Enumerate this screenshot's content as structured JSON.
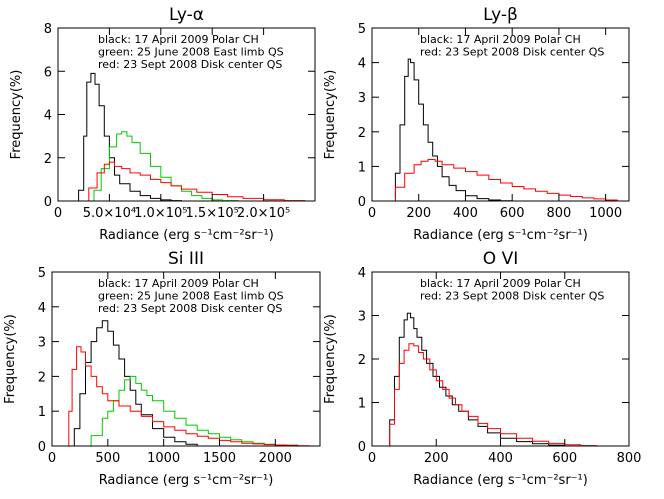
{
  "chart_data": [
    {
      "type": "line",
      "step": true,
      "title": "Ly-α",
      "xlabel": "Radiance (erg s⁻¹cm⁻²sr⁻¹)",
      "ylabel": "Frequency(%)",
      "xlim": [
        0,
        250000
      ],
      "ylim": [
        0,
        8
      ],
      "xticks": [
        0,
        50000,
        100000,
        150000,
        200000
      ],
      "xtick_labels": [
        "0",
        "5.0×10⁴",
        "1.0×10⁵",
        "1.5×10⁵",
        "2.0×10⁵"
      ],
      "yticks": [
        0,
        2,
        4,
        6,
        8
      ],
      "ytick_labels": [
        "0",
        "2",
        "4",
        "6",
        "8"
      ],
      "legend": [
        {
          "text": "black: 17 April 2009 Polar CH",
          "color": "#000000"
        },
        {
          "text": "green: 25 June 2008 East limb QS",
          "color": "#000000"
        },
        {
          "text": "red: 23 Sept 2008 Disk center QS",
          "color": "#000000"
        }
      ],
      "series": [
        {
          "color": "#000000",
          "x": [
            15000,
            20000,
            25000,
            28000,
            32000,
            36000,
            40000,
            45000,
            50000,
            55000,
            60000,
            70000,
            80000,
            90000,
            100000,
            110000,
            120000
          ],
          "y": [
            0,
            0.5,
            3.0,
            5.5,
            5.9,
            5.4,
            4.4,
            3.0,
            2.0,
            1.2,
            0.8,
            0.45,
            0.25,
            0.12,
            0.05,
            0.02,
            0
          ]
        },
        {
          "color": "#00cc00",
          "x": [
            28000,
            35000,
            42000,
            50000,
            57000,
            62000,
            67000,
            72000,
            80000,
            90000,
            100000,
            110000,
            120000,
            130000,
            140000,
            150000,
            160000,
            175000
          ],
          "y": [
            0,
            0.5,
            1.5,
            2.5,
            3.1,
            3.2,
            3.0,
            2.7,
            2.2,
            1.6,
            1.1,
            0.7,
            0.45,
            0.25,
            0.12,
            0.05,
            0.02,
            0
          ]
        },
        {
          "color": "#ff0000",
          "x": [
            20000,
            30000,
            38000,
            45000,
            50000,
            55000,
            62000,
            70000,
            80000,
            90000,
            100000,
            110000,
            120000,
            135000,
            150000,
            165000,
            180000,
            200000,
            220000,
            240000
          ],
          "y": [
            0,
            0.6,
            1.3,
            1.7,
            1.8,
            1.6,
            1.5,
            1.3,
            1.2,
            1.0,
            0.85,
            0.7,
            0.55,
            0.4,
            0.3,
            0.2,
            0.12,
            0.06,
            0.02,
            0
          ]
        }
      ]
    },
    {
      "type": "line",
      "step": true,
      "title": "Ly-β",
      "xlabel": "Radiance (erg s⁻¹cm⁻²sr⁻¹)",
      "ylabel": "Frequency(%)",
      "xlim": [
        0,
        1100
      ],
      "ylim": [
        0,
        5
      ],
      "xticks": [
        0,
        200,
        400,
        600,
        800,
        1000
      ],
      "xtick_labels": [
        "0",
        "200",
        "400",
        "600",
        "800",
        "1000"
      ],
      "yticks": [
        0,
        1,
        2,
        3,
        4,
        5
      ],
      "ytick_labels": [
        "0",
        "1",
        "2",
        "3",
        "4",
        "5"
      ],
      "legend": [
        {
          "text": "black: 17 April 2009 Polar CH",
          "color": "#000000"
        },
        {
          "text": "red: 23 Sept 2008 Disk center QS",
          "color": "#000000"
        }
      ],
      "series": [
        {
          "color": "#000000",
          "x": [
            80,
            100,
            120,
            140,
            155,
            165,
            180,
            200,
            220,
            240,
            260,
            280,
            300,
            330,
            360,
            400,
            450,
            500,
            550,
            600
          ],
          "y": [
            0,
            0.8,
            2.2,
            3.6,
            4.1,
            4.0,
            3.5,
            2.8,
            2.2,
            1.7,
            1.3,
            1.0,
            0.7,
            0.45,
            0.3,
            0.15,
            0.07,
            0.03,
            0.01,
            0
          ]
        },
        {
          "color": "#ff0000",
          "x": [
            60,
            100,
            140,
            180,
            210,
            240,
            270,
            300,
            350,
            400,
            450,
            500,
            550,
            600,
            650,
            700,
            750,
            800,
            850,
            900,
            950,
            1000,
            1050
          ],
          "y": [
            0,
            0.4,
            0.8,
            1.05,
            1.15,
            1.2,
            1.15,
            1.05,
            0.95,
            0.85,
            0.75,
            0.62,
            0.52,
            0.42,
            0.35,
            0.28,
            0.22,
            0.17,
            0.13,
            0.09,
            0.06,
            0.03,
            0.01
          ]
        }
      ]
    },
    {
      "type": "line",
      "step": true,
      "title": "Si III",
      "xlabel": "Radiance (erg s⁻¹cm⁻²sr⁻¹)",
      "ylabel": "Frequency(%)",
      "xlim": [
        0,
        2400
      ],
      "ylim": [
        0,
        5
      ],
      "xticks": [
        0,
        500,
        1000,
        1500,
        2000
      ],
      "xtick_labels": [
        "0",
        "500",
        "1000",
        "1500",
        "2000"
      ],
      "yticks": [
        0,
        1,
        2,
        3,
        4,
        5
      ],
      "ytick_labels": [
        "0",
        "1",
        "2",
        "3",
        "4",
        "5"
      ],
      "legend": [
        {
          "text": "black: 17 April 2009 Polar CH",
          "color": "#000000"
        },
        {
          "text": "green: 25 June 2008 East limb QS",
          "color": "#000000"
        },
        {
          "text": "red: 23 Sept 2008 Disk center QS",
          "color": "#000000"
        }
      ],
      "series": [
        {
          "color": "#000000",
          "x": [
            150,
            200,
            250,
            300,
            350,
            400,
            450,
            500,
            550,
            600,
            650,
            700,
            750,
            800,
            900,
            1000,
            1100,
            1200,
            1300
          ],
          "y": [
            0,
            0.5,
            1.5,
            2.4,
            3.0,
            3.4,
            3.6,
            3.3,
            2.9,
            2.5,
            2.0,
            1.6,
            1.2,
            0.9,
            0.5,
            0.25,
            0.12,
            0.05,
            0
          ]
        },
        {
          "color": "#00cc00",
          "x": [
            250,
            350,
            450,
            500,
            550,
            600,
            650,
            700,
            750,
            800,
            850,
            900,
            1000,
            1100,
            1200,
            1300,
            1400,
            1500,
            1600,
            1700,
            1800,
            1900,
            2000,
            2100,
            2200
          ],
          "y": [
            0,
            0.3,
            0.8,
            1.0,
            1.3,
            1.6,
            1.9,
            2.0,
            1.8,
            1.6,
            1.45,
            1.3,
            1.0,
            0.8,
            0.6,
            0.45,
            0.35,
            0.25,
            0.18,
            0.12,
            0.08,
            0.05,
            0.03,
            0.02,
            0
          ]
        },
        {
          "color": "#ff0000",
          "x": [
            100,
            150,
            180,
            220,
            260,
            300,
            350,
            400,
            450,
            500,
            600,
            700,
            800,
            900,
            1000,
            1100,
            1200,
            1300,
            1400,
            1500,
            1600,
            1700,
            1800,
            1900,
            2000,
            2100,
            2200,
            2300
          ],
          "y": [
            0,
            1.0,
            2.2,
            2.85,
            2.7,
            2.3,
            2.0,
            1.7,
            1.5,
            1.3,
            1.15,
            1.0,
            0.85,
            0.7,
            0.55,
            0.45,
            0.35,
            0.28,
            0.22,
            0.16,
            0.12,
            0.08,
            0.06,
            0.04,
            0.03,
            0.02,
            0.01,
            0
          ]
        }
      ]
    },
    {
      "type": "line",
      "step": true,
      "title": "O VI",
      "xlabel": "Radiance (erg s⁻¹cm⁻²sr⁻¹)",
      "ylabel": "Frequency(%)",
      "xlim": [
        0,
        800
      ],
      "ylim": [
        0,
        4
      ],
      "xticks": [
        0,
        200,
        400,
        600,
        800
      ],
      "xtick_labels": [
        "0",
        "200",
        "400",
        "600",
        "800"
      ],
      "yticks": [
        0,
        1,
        2,
        3,
        4
      ],
      "ytick_labels": [
        "0",
        "1",
        "2",
        "3",
        "4"
      ],
      "legend": [
        {
          "text": "black: 17 April 2009 Polar CH",
          "color": "#000000"
        },
        {
          "text": "red: 23 Sept 2008 Disk center QS",
          "color": "#000000"
        }
      ],
      "series": [
        {
          "color": "#000000",
          "x": [
            40,
            55,
            70,
            85,
            100,
            110,
            120,
            130,
            140,
            155,
            170,
            190,
            210,
            230,
            250,
            270,
            300,
            330,
            360,
            400,
            450,
            500,
            550,
            600
          ],
          "y": [
            0,
            0.6,
            1.6,
            2.5,
            2.9,
            3.05,
            2.95,
            2.7,
            2.5,
            2.2,
            1.9,
            1.6,
            1.35,
            1.15,
            0.95,
            0.8,
            0.6,
            0.45,
            0.3,
            0.18,
            0.1,
            0.05,
            0.02,
            0
          ]
        },
        {
          "color": "#ff0000",
          "x": [
            40,
            55,
            70,
            85,
            100,
            115,
            130,
            145,
            160,
            180,
            200,
            220,
            240,
            260,
            280,
            300,
            330,
            360,
            400,
            450,
            500,
            550,
            600,
            650,
            700
          ],
          "y": [
            0,
            0.5,
            1.3,
            1.9,
            2.2,
            2.35,
            2.3,
            2.15,
            2.0,
            1.75,
            1.5,
            1.3,
            1.1,
            0.95,
            0.8,
            0.68,
            0.52,
            0.4,
            0.28,
            0.18,
            0.11,
            0.06,
            0.03,
            0.01,
            0
          ]
        }
      ]
    }
  ]
}
